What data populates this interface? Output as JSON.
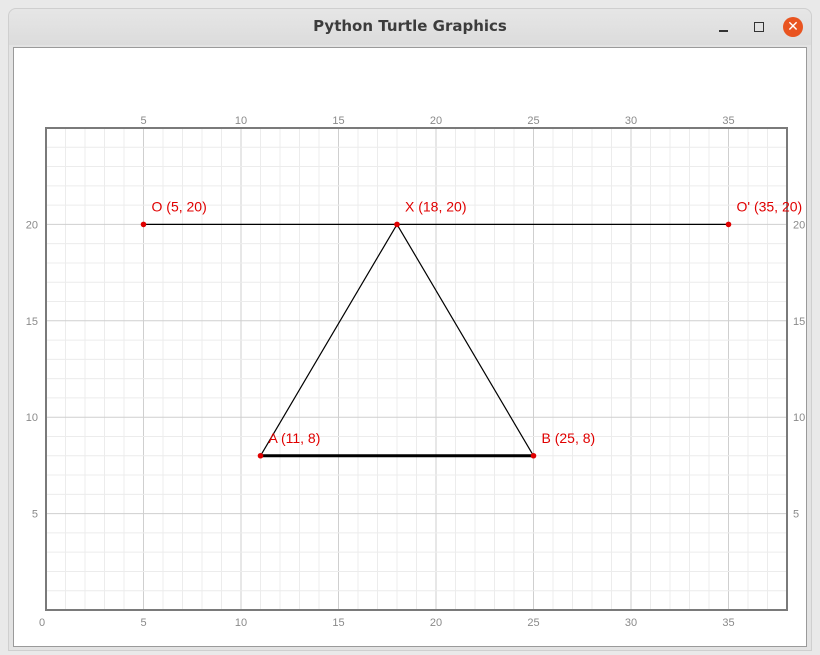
{
  "window": {
    "title": "Python Turtle Graphics",
    "controls": [
      "minimize-icon",
      "maximize-icon",
      "close-icon"
    ],
    "close_color": "#e95420"
  },
  "chart_data": {
    "type": "scatter",
    "xlim": [
      0,
      38
    ],
    "ylim": [
      0,
      25
    ],
    "grid": true,
    "x_ticks": [
      5,
      10,
      15,
      20,
      25,
      30,
      35
    ],
    "x_ticks_bottom": [
      0,
      5,
      10,
      15,
      20,
      25,
      30,
      35
    ],
    "y_ticks": [
      5,
      10,
      15,
      20
    ],
    "points": [
      {
        "label": "O (5, 20)",
        "x": 5,
        "y": 20
      },
      {
        "label": "X (18, 20)",
        "x": 18,
        "y": 20
      },
      {
        "label": "O' (35, 20)",
        "x": 35,
        "y": 20
      },
      {
        "label": "A (11, 8)",
        "x": 11,
        "y": 8
      },
      {
        "label": "B (25, 8)",
        "x": 25,
        "y": 8
      }
    ],
    "segments": [
      {
        "from": [
          5,
          20
        ],
        "to": [
          35,
          20
        ],
        "weight": "thin"
      },
      {
        "from": [
          18,
          20
        ],
        "to": [
          11,
          8
        ],
        "weight": "thin"
      },
      {
        "from": [
          18,
          20
        ],
        "to": [
          25,
          8
        ],
        "weight": "thin"
      },
      {
        "from": [
          11,
          8
        ],
        "to": [
          25,
          8
        ],
        "weight": "thick"
      }
    ],
    "point_color": "#e00000",
    "label_color": "#e00000",
    "line_color": "#000000"
  }
}
